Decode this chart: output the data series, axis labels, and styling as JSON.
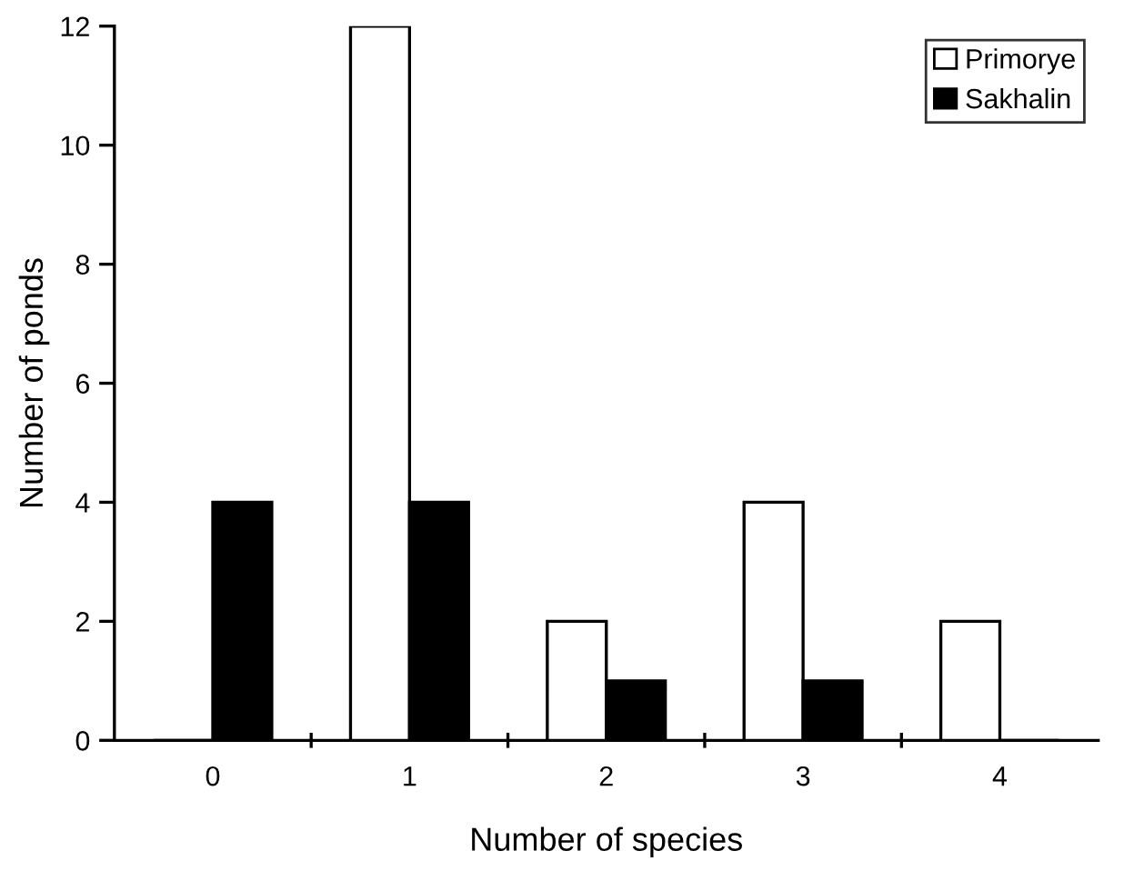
{
  "chart_data": {
    "type": "bar",
    "xlabel": "Number of species",
    "ylabel": "Number of ponds",
    "categories": [
      "0",
      "1",
      "2",
      "3",
      "4"
    ],
    "series": [
      {
        "name": "Primorye",
        "color": "#ffffff",
        "values": [
          0,
          12,
          2,
          4,
          2
        ]
      },
      {
        "name": "Sakhalin",
        "color": "#000000",
        "values": [
          4,
          4,
          1,
          1,
          0
        ]
      }
    ],
    "ylim": [
      0,
      12
    ],
    "yticks": [
      0,
      2,
      4,
      6,
      8,
      10,
      12
    ],
    "grid": false,
    "legend": "top right"
  }
}
